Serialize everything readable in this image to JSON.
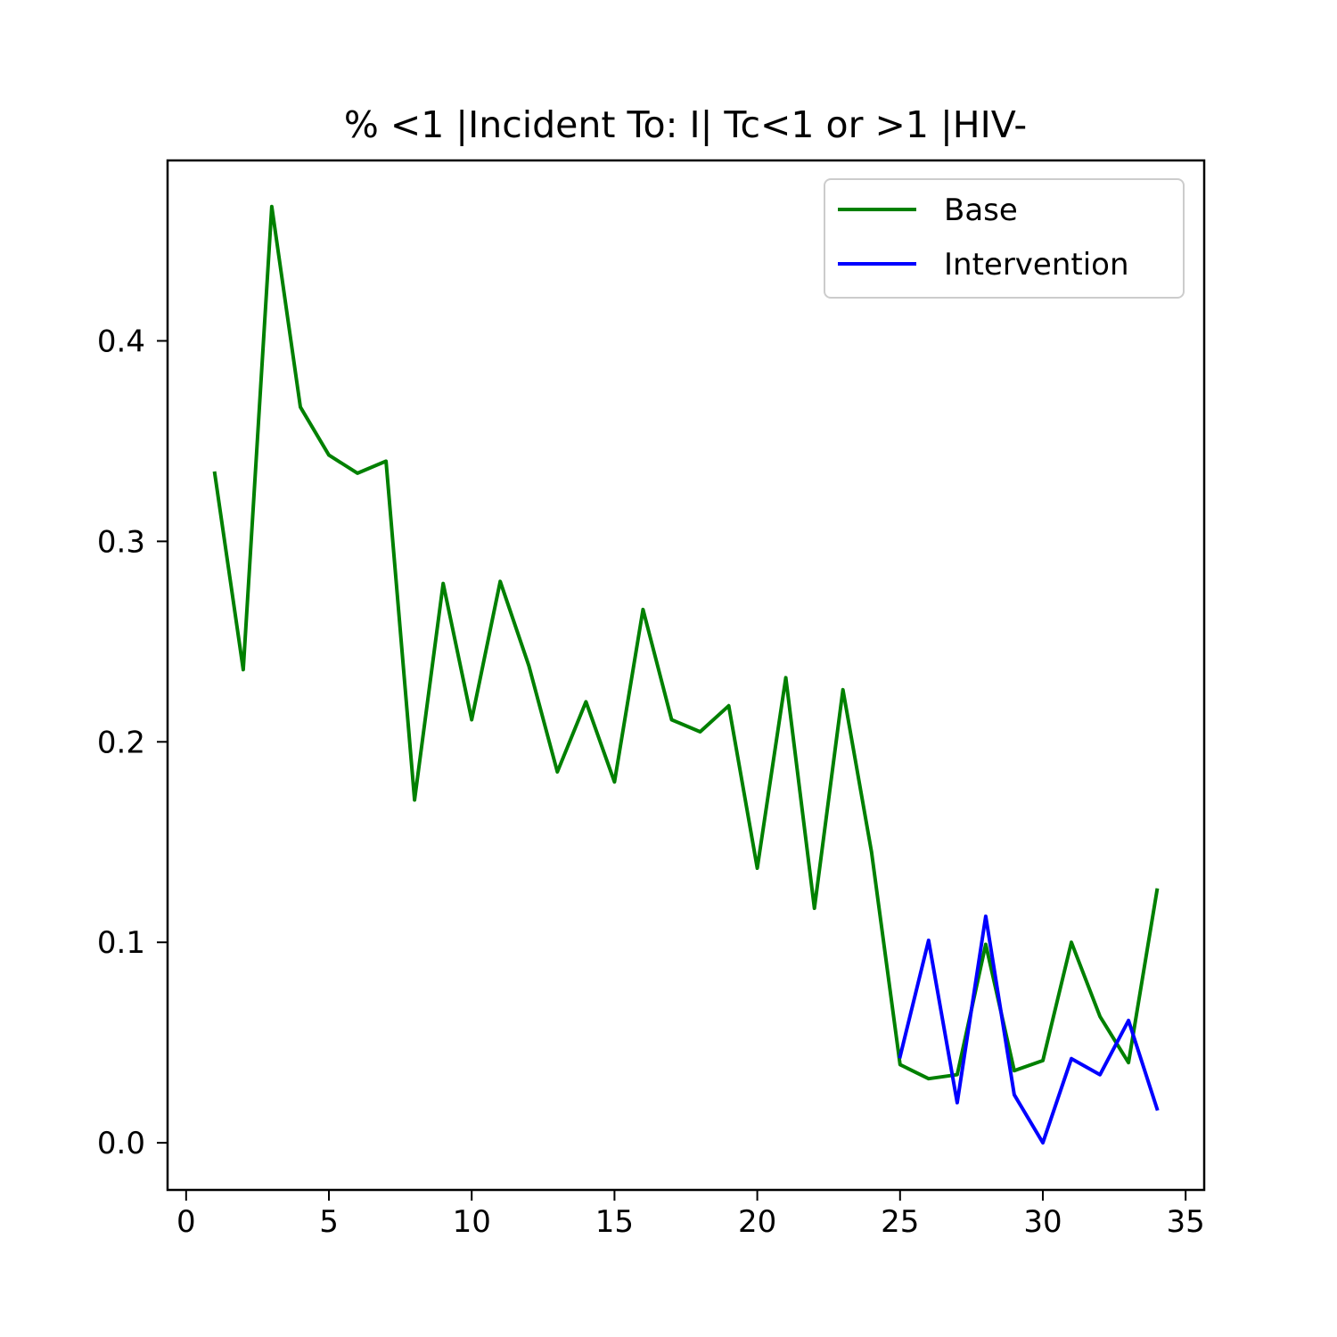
{
  "chart_data": {
    "type": "line",
    "title": "% <1 |Incident To: I| Tc<1 or >1 |HIV-",
    "xlabel": "",
    "ylabel": "",
    "xlim": [
      -0.65,
      35.65
    ],
    "ylim": [
      -0.0235,
      0.49
    ],
    "xticks": [
      0,
      5,
      10,
      15,
      20,
      25,
      30,
      35
    ],
    "xtick_labels": [
      "0",
      "5",
      "10",
      "15",
      "20",
      "25",
      "30",
      "35"
    ],
    "yticks": [
      0.0,
      0.1,
      0.2,
      0.3,
      0.4
    ],
    "ytick_labels": [
      "0.0",
      "0.1",
      "0.2",
      "0.3",
      "0.4"
    ],
    "grid": false,
    "legend_position": "upper right",
    "series": [
      {
        "name": "Base",
        "color": "#008000",
        "x": [
          1,
          2,
          3,
          4,
          5,
          6,
          7,
          8,
          9,
          10,
          11,
          12,
          13,
          14,
          15,
          16,
          17,
          18,
          19,
          20,
          21,
          22,
          23,
          24,
          25,
          26,
          27,
          28,
          29,
          30,
          31,
          32,
          33,
          34
        ],
        "y": [
          0.334,
          0.236,
          0.467,
          0.367,
          0.343,
          0.334,
          0.34,
          0.171,
          0.279,
          0.211,
          0.28,
          0.238,
          0.185,
          0.22,
          0.18,
          0.266,
          0.211,
          0.205,
          0.218,
          0.137,
          0.232,
          0.117,
          0.226,
          0.145,
          0.039,
          0.032,
          0.034,
          0.099,
          0.036,
          0.041,
          0.1,
          0.063,
          0.04,
          0.126
        ]
      },
      {
        "name": "Intervention",
        "color": "#0000ff",
        "x": [
          25,
          26,
          27,
          28,
          29,
          30,
          31,
          32,
          33,
          34
        ],
        "y": [
          0.043,
          0.101,
          0.02,
          0.113,
          0.024,
          0.0,
          0.042,
          0.034,
          0.061,
          0.017
        ]
      }
    ]
  }
}
